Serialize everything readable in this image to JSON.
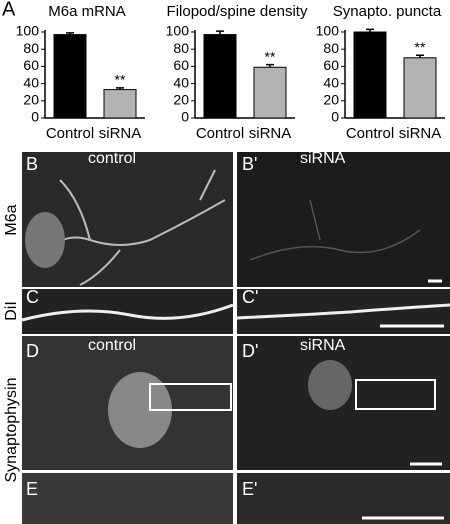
{
  "figure": {
    "panel_label": "A",
    "row_labels": [
      "M6a",
      "DiI",
      "Synaptophysin"
    ],
    "panels": [
      {
        "label": "B",
        "condition": "control"
      },
      {
        "label": "B'",
        "condition": "siRNA"
      },
      {
        "label": "C"
      },
      {
        "label": "C'"
      },
      {
        "label": "D",
        "condition": "control"
      },
      {
        "label": "D'",
        "condition": "siRNA"
      },
      {
        "label": "E"
      },
      {
        "label": "E'"
      }
    ]
  },
  "chart_data": [
    {
      "type": "bar",
      "title": "M6a mRNA",
      "categories": [
        "Control",
        "siRNA"
      ],
      "values": [
        97,
        33
      ],
      "errors": [
        2,
        2
      ],
      "colors": [
        "#000000",
        "#b3b3b3"
      ],
      "significance_label": "**",
      "ylim": [
        0,
        100
      ],
      "yticks": [
        0,
        20,
        40,
        60,
        80,
        100
      ]
    },
    {
      "type": "bar",
      "title": "Filopod/spine density",
      "categories": [
        "Control",
        "siRNA"
      ],
      "values": [
        97,
        59
      ],
      "errors": [
        4,
        3
      ],
      "colors": [
        "#000000",
        "#b3b3b3"
      ],
      "significance_label": "**",
      "ylim": [
        0,
        100
      ],
      "yticks": [
        0,
        20,
        40,
        60,
        80,
        100
      ]
    },
    {
      "type": "bar",
      "title": "Synapto. puncta",
      "categories": [
        "Control",
        "siRNA"
      ],
      "values": [
        100,
        70
      ],
      "errors": [
        3,
        3
      ],
      "colors": [
        "#000000",
        "#b3b3b3"
      ],
      "significance_label": "**",
      "ylim": [
        0,
        100
      ],
      "yticks": [
        0,
        20,
        40,
        60,
        80,
        100
      ]
    }
  ]
}
